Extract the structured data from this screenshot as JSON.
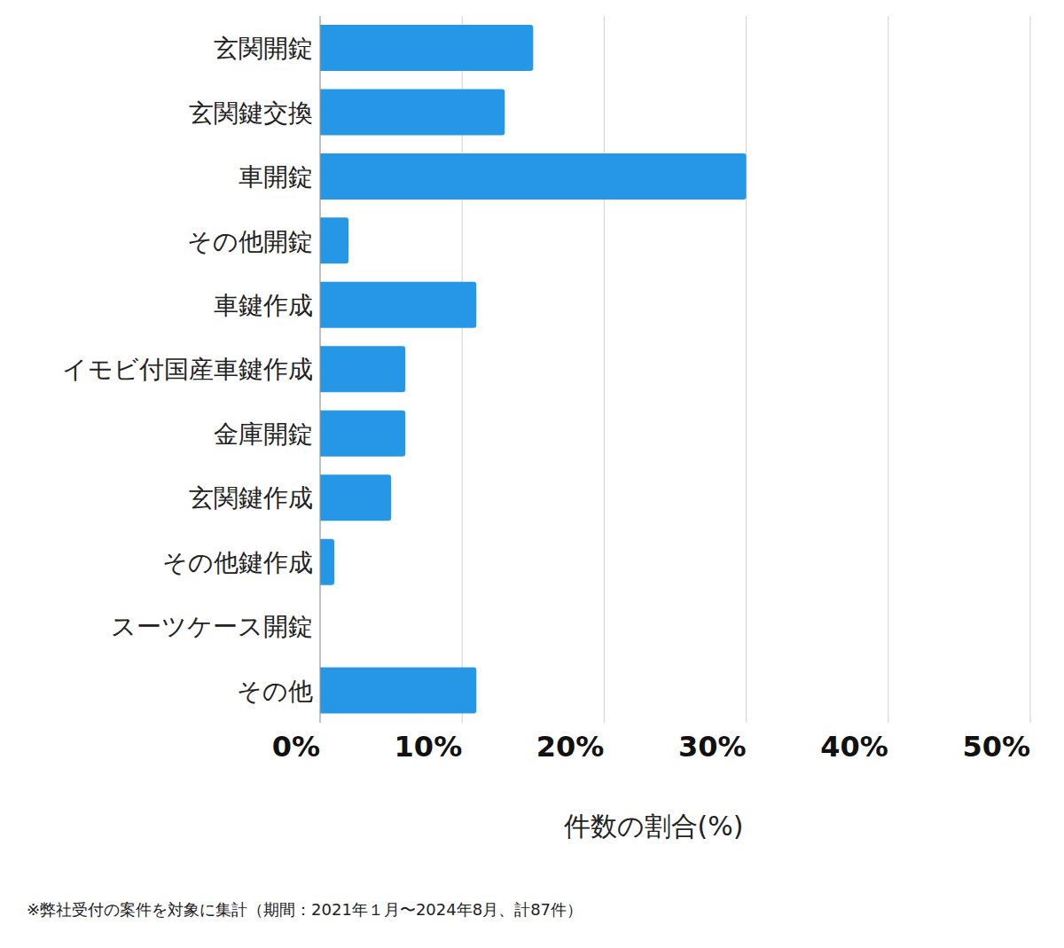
{
  "chart_data": {
    "type": "bar",
    "orientation": "horizontal",
    "categories": [
      "玄関開錠",
      "玄関鍵交換",
      "車開錠",
      "その他開錠",
      "車鍵作成",
      "イモビ付国産車鍵作成",
      "金庫開錠",
      "玄関鍵作成",
      "その他鍵作成",
      "スーツケース開錠",
      "その他"
    ],
    "values": [
      15,
      13,
      30,
      2,
      11,
      6,
      6,
      5,
      1,
      0,
      11
    ],
    "color": "#2696e6",
    "xlim": [
      0,
      50
    ],
    "xticks": [
      {
        "value": 0,
        "label": "0%"
      },
      {
        "value": 10,
        "label": "10%"
      },
      {
        "value": 20,
        "label": "20%"
      },
      {
        "value": 30,
        "label": "30%"
      },
      {
        "value": 40,
        "label": "40%"
      },
      {
        "value": 50,
        "label": "50%"
      }
    ],
    "x_label": "件数の割合(%)",
    "footnote": "※弊社受付の案件を対象に集計（期間：2021年１月〜2024年8月、計87件）",
    "grid": true
  }
}
